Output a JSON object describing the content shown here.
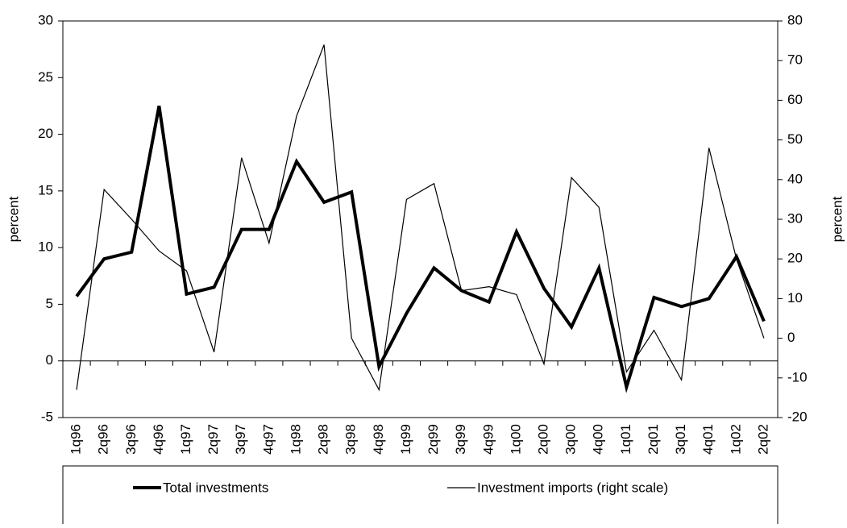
{
  "chart_data": {
    "type": "line",
    "y_label": "percent",
    "y2_label": "percent",
    "categories": [
      "1q96",
      "2q96",
      "3q96",
      "4q96",
      "1q97",
      "2q97",
      "3q97",
      "4q97",
      "1q98",
      "2q98",
      "3q98",
      "4q98",
      "1q99",
      "2q99",
      "3q99",
      "4q99",
      "1q00",
      "2q00",
      "3q00",
      "4q00",
      "1q01",
      "2q01",
      "3q01",
      "4q01",
      "1q02",
      "2q02"
    ],
    "series": [
      {
        "name": "Total investments",
        "color": "#000000",
        "values": [
          5.7,
          9.0,
          9.6,
          22.5,
          5.9,
          6.5,
          11.6,
          11.6,
          17.6,
          14.0,
          14.9,
          -0.5,
          4.2,
          8.2,
          6.2,
          5.2,
          11.4,
          6.4,
          3.0,
          8.2,
          -2.3,
          5.6,
          4.8,
          5.5,
          9.2,
          3.5
        ]
      },
      {
        "name": "Investment imports (right scale)",
        "color": "#000000",
        "axis": "y2",
        "values": [
          -13,
          37.5,
          30,
          22,
          17,
          -3.5,
          45.5,
          24,
          56,
          74,
          0,
          -13,
          35,
          39,
          12,
          13,
          11,
          -6.5,
          40.5,
          33,
          -8.5,
          2,
          -10.5,
          48,
          20,
          0
        ]
      }
    ],
    "ylim": [
      -5,
      30
    ],
    "yticks": [
      -5,
      0,
      5,
      10,
      15,
      20,
      25,
      30
    ],
    "y2lim": [
      -20,
      80
    ],
    "y2ticks": [
      -20,
      -10,
      0,
      10,
      20,
      30,
      40,
      50,
      60,
      70,
      80
    ],
    "grid": false,
    "legend": "bottom"
  }
}
